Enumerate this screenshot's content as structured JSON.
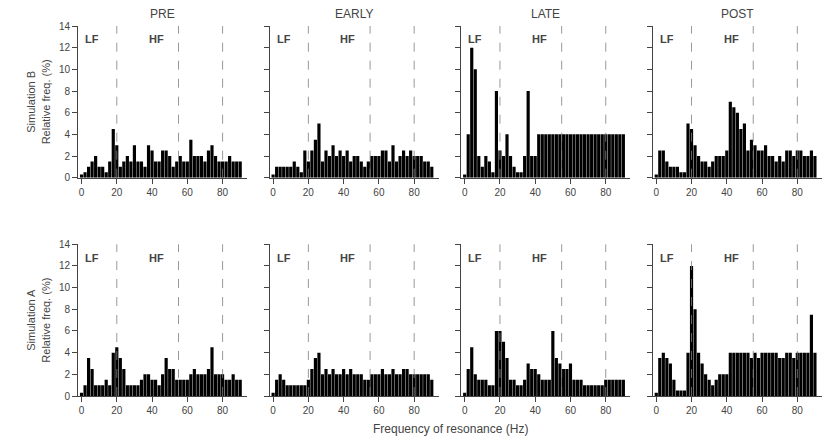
{
  "chart_data": [
    {
      "type": "bar",
      "title": "PRE",
      "ylabel": "Simulation B\nRelative freq. (%)",
      "color": "black",
      "x": [
        0,
        2,
        4,
        6,
        8,
        10,
        12,
        14,
        16,
        18,
        20,
        22,
        24,
        26,
        28,
        30,
        32,
        34,
        36,
        38,
        40,
        42,
        44,
        46,
        48,
        50,
        52,
        54,
        56,
        58,
        60,
        62,
        64,
        66,
        68,
        70,
        72,
        74,
        76,
        78,
        80,
        82,
        84,
        86,
        88,
        90
      ],
      "values": [
        0.3,
        0.5,
        1.0,
        1.5,
        2.0,
        1.0,
        1.0,
        0.5,
        1.5,
        4.5,
        3.0,
        1.0,
        1.5,
        2.0,
        1.5,
        3.0,
        1.5,
        1.5,
        1.0,
        3.0,
        2.5,
        1.5,
        1.5,
        2.5,
        2.5,
        2.0,
        1.0,
        1.5,
        2.0,
        1.5,
        1.5,
        3.5,
        2.0,
        2.0,
        2.0,
        1.5,
        2.5,
        3.0,
        2.0,
        1.5,
        1.5,
        1.5,
        2.0,
        1.5,
        1.5,
        1.5
      ],
      "xlim": [
        -2,
        94
      ],
      "xticks": [
        0,
        20,
        40,
        60,
        80
      ],
      "ylim": [
        0,
        14
      ],
      "yticks": [
        0,
        2,
        4,
        6,
        8,
        10,
        12,
        14
      ],
      "grid": false,
      "vlines": {
        "x": [
          20,
          55,
          80
        ],
        "color": "gray",
        "line_style": "dashed"
      },
      "annotations": [
        {
          "text": "LF",
          "x": 1,
          "y": 13.5
        },
        {
          "text": "HF",
          "x": 37,
          "y": 13.5
        }
      ]
    },
    {
      "type": "bar",
      "title": "EARLY",
      "color": "black",
      "x": [
        0,
        2,
        4,
        6,
        8,
        10,
        12,
        14,
        16,
        18,
        20,
        22,
        24,
        26,
        28,
        30,
        32,
        34,
        36,
        38,
        40,
        42,
        44,
        46,
        48,
        50,
        52,
        54,
        56,
        58,
        60,
        62,
        64,
        66,
        68,
        70,
        72,
        74,
        76,
        78,
        80,
        82,
        84,
        86,
        88,
        90
      ],
      "values": [
        0.3,
        1.0,
        1.0,
        1.0,
        1.0,
        1.0,
        1.5,
        1.0,
        0.5,
        2.5,
        1.5,
        2.5,
        3.5,
        5.0,
        1.5,
        2.5,
        2.0,
        3.0,
        2.0,
        2.5,
        2.0,
        2.5,
        1.5,
        2.0,
        2.0,
        1.5,
        1.0,
        1.5,
        2.0,
        2.0,
        2.0,
        2.5,
        2.5,
        1.5,
        3.0,
        1.5,
        2.0,
        2.5,
        2.0,
        2.5,
        2.0,
        2.0,
        2.0,
        1.5,
        1.5,
        1.0
      ],
      "xlim": [
        -2,
        94
      ],
      "xticks": [
        0,
        20,
        40,
        60,
        80
      ],
      "ylim": [
        0,
        14
      ],
      "yticks": [
        0,
        2,
        4,
        6,
        8,
        10,
        12,
        14
      ],
      "grid": false,
      "tick_labels": "x",
      "vlines": {
        "x": [
          20,
          55,
          80
        ],
        "color": "gray",
        "line_style": "dashed"
      },
      "annotations": [
        {
          "text": "LF",
          "x": 1,
          "y": 13.5
        },
        {
          "text": "HF",
          "x": 37,
          "y": 13.5
        }
      ]
    },
    {
      "type": "bar",
      "title": "LATE",
      "color": "black",
      "x": [
        0,
        2,
        4,
        6,
        8,
        10,
        12,
        14,
        16,
        18,
        20,
        22,
        24,
        26,
        28,
        30,
        32,
        34,
        36,
        38,
        40,
        42,
        44,
        46,
        48,
        50,
        52,
        54,
        56,
        58,
        60,
        62,
        64,
        66,
        68,
        70,
        72,
        74,
        76,
        78,
        80,
        82,
        84,
        86,
        88,
        90
      ],
      "values": [
        0.3,
        4.0,
        12.0,
        10.0,
        2.0,
        1.0,
        2.0,
        1.5,
        0.5,
        8.0,
        2.5,
        2.0,
        4.0,
        2.0,
        1.0,
        0.5,
        0.5,
        2.0,
        8.0,
        2.0,
        2.0,
        4.0,
        4.0,
        4.0,
        4.0,
        4.0,
        4.0,
        4.0,
        4.0,
        4.0,
        4.0,
        4.0,
        4.0,
        4.0,
        4.0,
        4.0,
        4.0,
        4.0,
        4.0,
        4.0,
        4.0,
        4.0,
        4.0,
        4.0,
        4.0,
        4.0
      ],
      "xlim": [
        -2,
        94
      ],
      "xticks": [
        0,
        20,
        40,
        60,
        80
      ],
      "ylim": [
        0,
        14
      ],
      "yticks": [
        0,
        2,
        4,
        6,
        8,
        10,
        12,
        14
      ],
      "grid": false,
      "tick_labels": "x",
      "vlines": {
        "x": [
          20,
          55,
          80
        ],
        "color": "gray",
        "line_style": "dashed"
      },
      "annotations": [
        {
          "text": "LF",
          "x": 1,
          "y": 13.5
        },
        {
          "text": "HF",
          "x": 37,
          "y": 13.5
        }
      ]
    },
    {
      "type": "bar",
      "title": "POST",
      "color": "black",
      "x": [
        0,
        2,
        4,
        6,
        8,
        10,
        12,
        14,
        16,
        18,
        20,
        22,
        24,
        26,
        28,
        30,
        32,
        34,
        36,
        38,
        40,
        42,
        44,
        46,
        48,
        50,
        52,
        54,
        56,
        58,
        60,
        62,
        64,
        66,
        68,
        70,
        72,
        74,
        76,
        78,
        80,
        82,
        84,
        86,
        88,
        90
      ],
      "values": [
        0.3,
        2.5,
        2.5,
        1.5,
        1.0,
        1.0,
        1.0,
        0.5,
        0.5,
        5.0,
        4.5,
        3.0,
        2.0,
        1.5,
        1.5,
        1.0,
        1.5,
        2.0,
        2.0,
        2.0,
        2.5,
        7.0,
        6.5,
        6.0,
        4.5,
        5.0,
        2.5,
        3.5,
        3.0,
        2.5,
        2.5,
        3.0,
        2.0,
        2.0,
        1.5,
        2.0,
        1.5,
        2.5,
        2.5,
        2.0,
        2.5,
        2.5,
        2.0,
        2.0,
        2.5,
        2.0
      ],
      "xlim": [
        -2,
        94
      ],
      "xticks": [
        0,
        20,
        40,
        60,
        80
      ],
      "ylim": [
        0,
        14
      ],
      "yticks": [
        0,
        2,
        4,
        6,
        8,
        10,
        12,
        14
      ],
      "grid": false,
      "tick_labels": "x",
      "vlines": {
        "x": [
          20,
          55,
          80
        ],
        "color": "gray",
        "line_style": "dashed"
      },
      "annotations": [
        {
          "text": "LF",
          "x": 1,
          "y": 13.5
        },
        {
          "text": "HF",
          "x": 37,
          "y": 13.5
        }
      ]
    },
    {
      "type": "bar",
      "ylabel": "Simulation A\nRelative freq. (%)",
      "color": "black",
      "x": [
        0,
        2,
        4,
        6,
        8,
        10,
        12,
        14,
        16,
        18,
        20,
        22,
        24,
        26,
        28,
        30,
        32,
        34,
        36,
        38,
        40,
        42,
        44,
        46,
        48,
        50,
        52,
        54,
        56,
        58,
        60,
        62,
        64,
        66,
        68,
        70,
        72,
        74,
        76,
        78,
        80,
        82,
        84,
        86,
        88,
        90
      ],
      "values": [
        0.3,
        1.0,
        3.5,
        2.5,
        1.0,
        1.0,
        1.0,
        1.5,
        1.0,
        4.0,
        4.5,
        3.5,
        2.5,
        1.0,
        1.0,
        1.0,
        1.0,
        1.5,
        2.0,
        2.0,
        1.5,
        1.5,
        1.0,
        2.0,
        3.5,
        2.5,
        2.5,
        1.5,
        1.5,
        1.5,
        1.5,
        2.0,
        2.5,
        2.0,
        2.0,
        2.0,
        2.5,
        4.5,
        2.0,
        2.0,
        2.0,
        1.5,
        1.5,
        2.0,
        1.5,
        1.5
      ],
      "xlim": [
        -2,
        94
      ],
      "xticks": [
        0,
        20,
        40,
        60,
        80
      ],
      "ylim": [
        0,
        14
      ],
      "yticks": [
        0,
        2,
        4,
        6,
        8,
        10,
        12,
        14
      ],
      "grid": false,
      "vlines": {
        "x": [
          20,
          55,
          80
        ],
        "color": "gray",
        "line_style": "dashed"
      },
      "annotations": [
        {
          "text": "LF",
          "x": 1,
          "y": 13.5
        },
        {
          "text": "HF",
          "x": 37,
          "y": 13.5
        }
      ]
    },
    {
      "type": "bar",
      "color": "black",
      "x": [
        0,
        2,
        4,
        6,
        8,
        10,
        12,
        14,
        16,
        18,
        20,
        22,
        24,
        26,
        28,
        30,
        32,
        34,
        36,
        38,
        40,
        42,
        44,
        46,
        48,
        50,
        52,
        54,
        56,
        58,
        60,
        62,
        64,
        66,
        68,
        70,
        72,
        74,
        76,
        78,
        80,
        82,
        84,
        86,
        88,
        90
      ],
      "values": [
        0.3,
        1.5,
        2.0,
        1.5,
        1.0,
        1.0,
        1.0,
        1.0,
        1.0,
        1.0,
        1.5,
        2.5,
        3.5,
        4.0,
        2.0,
        2.5,
        2.0,
        2.5,
        2.0,
        2.0,
        2.5,
        2.0,
        2.5,
        2.0,
        2.0,
        2.0,
        1.5,
        1.5,
        2.0,
        2.0,
        2.0,
        2.5,
        2.0,
        2.0,
        2.5,
        2.0,
        2.0,
        2.5,
        2.5,
        2.0,
        2.0,
        2.0,
        2.0,
        2.0,
        2.0,
        1.5
      ],
      "xlim": [
        -2,
        94
      ],
      "xticks": [
        0,
        20,
        40,
        60,
        80
      ],
      "ylim": [
        0,
        14
      ],
      "yticks": [
        0,
        2,
        4,
        6,
        8,
        10,
        12,
        14
      ],
      "grid": false,
      "tick_labels": "x",
      "vlines": {
        "x": [
          20,
          55,
          80
        ],
        "color": "gray",
        "line_style": "dashed"
      },
      "annotations": [
        {
          "text": "LF",
          "x": 1,
          "y": 13.5
        },
        {
          "text": "HF",
          "x": 37,
          "y": 13.5
        }
      ]
    },
    {
      "type": "bar",
      "color": "black",
      "x": [
        0,
        2,
        4,
        6,
        8,
        10,
        12,
        14,
        16,
        18,
        20,
        22,
        24,
        26,
        28,
        30,
        32,
        34,
        36,
        38,
        40,
        42,
        44,
        46,
        48,
        50,
        52,
        54,
        56,
        58,
        60,
        62,
        64,
        66,
        68,
        70,
        72,
        74,
        76,
        78,
        80,
        82,
        84,
        86,
        88,
        90
      ],
      "values": [
        0.3,
        2.5,
        4.5,
        2.0,
        1.5,
        1.5,
        1.5,
        1.0,
        1.0,
        6.0,
        6.0,
        5.0,
        3.5,
        1.5,
        1.5,
        1.0,
        1.0,
        1.5,
        3.0,
        2.5,
        2.5,
        2.0,
        1.5,
        1.5,
        1.5,
        6.0,
        3.5,
        3.0,
        2.5,
        2.5,
        3.0,
        1.5,
        1.5,
        1.5,
        1.0,
        1.0,
        1.0,
        1.0,
        1.0,
        1.0,
        1.5,
        1.5,
        1.5,
        1.5,
        1.5,
        1.5
      ],
      "xlim": [
        -2,
        94
      ],
      "xticks": [
        0,
        20,
        40,
        60,
        80
      ],
      "ylim": [
        0,
        14
      ],
      "yticks": [
        0,
        2,
        4,
        6,
        8,
        10,
        12,
        14
      ],
      "grid": false,
      "tick_labels": "x",
      "vlines": {
        "x": [
          20,
          55,
          80
        ],
        "color": "gray",
        "line_style": "dashed"
      },
      "annotations": [
        {
          "text": "LF",
          "x": 1,
          "y": 13.5
        },
        {
          "text": "HF",
          "x": 37,
          "y": 13.5
        }
      ]
    },
    {
      "type": "bar",
      "color": "black",
      "x": [
        0,
        2,
        4,
        6,
        8,
        10,
        12,
        14,
        16,
        18,
        20,
        22,
        24,
        26,
        28,
        30,
        32,
        34,
        36,
        38,
        40,
        42,
        44,
        46,
        48,
        50,
        52,
        54,
        56,
        58,
        60,
        62,
        64,
        66,
        68,
        70,
        72,
        74,
        76,
        78,
        80,
        82,
        84,
        86,
        88,
        90
      ],
      "values": [
        0.3,
        3.5,
        4.0,
        3.5,
        3.0,
        1.5,
        0.5,
        0.5,
        0.5,
        4.0,
        12.0,
        8.0,
        4.0,
        3.0,
        2.0,
        1.5,
        1.0,
        1.5,
        2.0,
        2.0,
        2.0,
        4.0,
        4.0,
        4.0,
        4.0,
        4.0,
        4.0,
        3.5,
        4.0,
        3.5,
        4.0,
        4.0,
        4.0,
        4.0,
        4.0,
        3.5,
        3.5,
        4.0,
        4.0,
        3.5,
        4.0,
        4.0,
        4.0,
        4.0,
        7.5,
        4.0
      ],
      "xlim": [
        -2,
        94
      ],
      "xticks": [
        0,
        20,
        40,
        60,
        80
      ],
      "ylim": [
        0,
        14
      ],
      "yticks": [
        0,
        2,
        4,
        6,
        8,
        10,
        12,
        14
      ],
      "grid": false,
      "tick_labels": "x",
      "vlines": {
        "x": [
          20,
          55,
          80
        ],
        "color": "gray",
        "line_style": "dashed"
      },
      "annotations": [
        {
          "text": "LF",
          "x": 1,
          "y": 13.5
        },
        {
          "text": "HF",
          "x": 37,
          "y": 13.5
        }
      ]
    }
  ],
  "xlabel": "Frequency of resonance (Hz)"
}
